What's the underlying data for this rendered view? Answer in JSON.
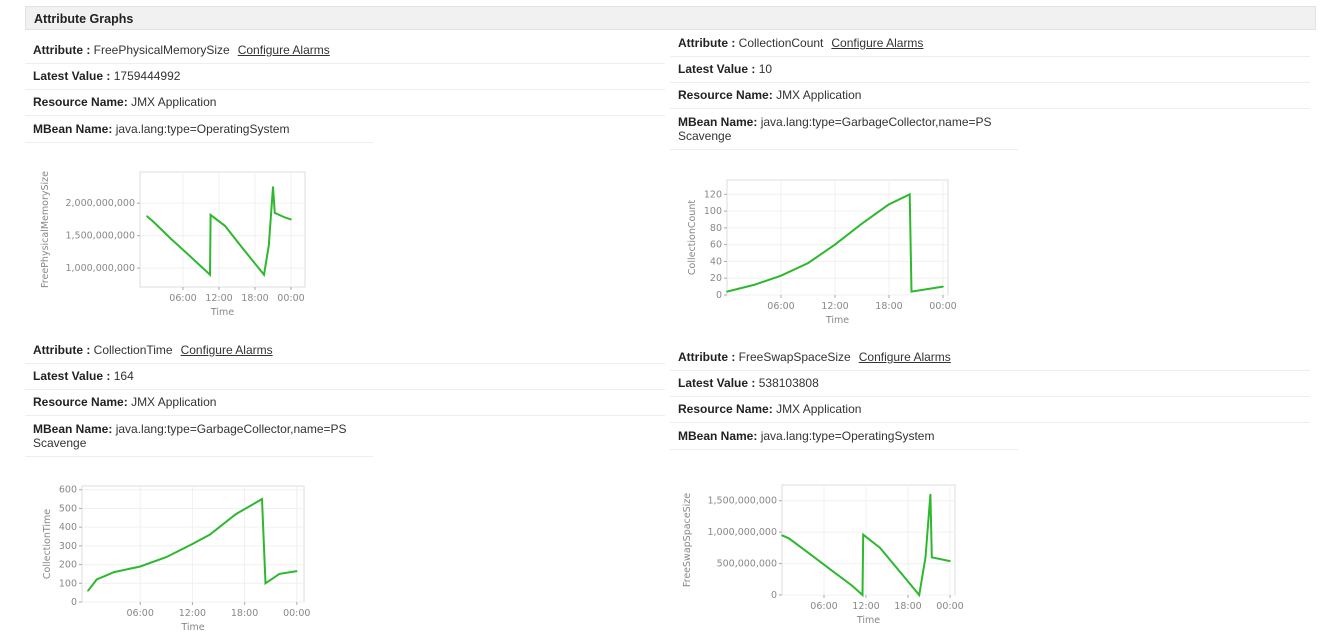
{
  "header": {
    "title": "Attribute Graphs"
  },
  "labels": {
    "attribute": "Attribute :",
    "latest": "Latest Value :",
    "resource": "Resource Name:",
    "mbean": "MBean Name:",
    "configure": "Configure Alarms"
  },
  "panels": [
    {
      "attribute": "FreePhysicalMemorySize",
      "latest": "1759444992",
      "resource": "JMX Application",
      "mbean": "java.lang:type=OperatingSystem"
    },
    {
      "attribute": "CollectionCount",
      "latest": "10",
      "resource": "JMX Application",
      "mbean": "java.lang:type=GarbageCollector,name=PS Scavenge"
    },
    {
      "attribute": "CollectionTime",
      "latest": "164",
      "resource": "JMX Application",
      "mbean": "java.lang:type=GarbageCollector,name=PS Scavenge"
    },
    {
      "attribute": "FreeSwapSpaceSize",
      "latest": "538103808",
      "resource": "JMX Application",
      "mbean": "java.lang:type=OperatingSystem"
    }
  ],
  "chart_data": [
    {
      "type": "line",
      "xlabel": "Time",
      "ylabel": "FreePhysicalMemorySize",
      "color": "#2eb82e",
      "xticks": [
        "06:00",
        "12:00",
        "18:00",
        "00:00"
      ],
      "yticks": [
        1000000000,
        1500000000,
        2000000000
      ],
      "ylim": [
        710000000,
        2480000000
      ],
      "grid": true,
      "x": [
        "00:00",
        "01:00",
        "04:00",
        "07:00",
        "10:30",
        "10:36",
        "13:00",
        "16:00",
        "19:30",
        "20:18",
        "21:00",
        "21:18",
        "23:00",
        "24:00"
      ],
      "y": [
        1800000000,
        1720000000,
        1450000000,
        1200000000,
        900000000,
        1820000000,
        1650000000,
        1300000000,
        900000000,
        1350000000,
        2250000000,
        1850000000,
        1780000000,
        1750000000
      ]
    },
    {
      "type": "line",
      "xlabel": "Time",
      "ylabel": "CollectionCount",
      "color": "#2eb82e",
      "xticks": [
        "06:00",
        "12:00",
        "18:00",
        "00:00"
      ],
      "yticks": [
        0,
        20,
        40,
        60,
        80,
        100,
        120
      ],
      "ylim": [
        0,
        137
      ],
      "grid": true,
      "x": [
        "00:00",
        "03:00",
        "06:00",
        "09:00",
        "12:00",
        "15:00",
        "18:00",
        "20:18",
        "20:30",
        "24:00"
      ],
      "y": [
        4,
        12,
        23,
        38,
        60,
        85,
        108,
        120,
        4,
        10
      ]
    },
    {
      "type": "line",
      "xlabel": "Time",
      "ylabel": "CollectionTime",
      "color": "#2eb82e",
      "xticks": [
        "06:00",
        "12:00",
        "18:00",
        "00:00"
      ],
      "yticks": [
        0,
        100,
        200,
        300,
        400,
        500,
        600
      ],
      "ylim": [
        0,
        620
      ],
      "grid": true,
      "x": [
        "00:00",
        "01:00",
        "03:00",
        "06:00",
        "09:00",
        "12:00",
        "14:00",
        "17:00",
        "20:00",
        "20:24",
        "22:00",
        "24:00"
      ],
      "y": [
        60,
        120,
        160,
        190,
        240,
        310,
        360,
        470,
        550,
        100,
        150,
        165
      ]
    },
    {
      "type": "line",
      "xlabel": "Time",
      "ylabel": "FreeSwapSpaceSize",
      "color": "#2eb82e",
      "xticks": [
        "06:00",
        "12:00",
        "18:00",
        "00:00"
      ],
      "yticks": [
        0,
        500000000,
        1000000000,
        1500000000
      ],
      "ylim": [
        0,
        1750000000
      ],
      "grid": true,
      "x": [
        "00:00",
        "01:00",
        "04:00",
        "07:00",
        "10:00",
        "11:30",
        "11:36",
        "14:00",
        "17:00",
        "19:36",
        "20:30",
        "21:12",
        "21:24",
        "24:00"
      ],
      "y": [
        950000000,
        900000000,
        650000000,
        400000000,
        150000000,
        0,
        960000000,
        750000000,
        350000000,
        0,
        600000000,
        1600000000,
        600000000,
        540000000
      ]
    }
  ]
}
